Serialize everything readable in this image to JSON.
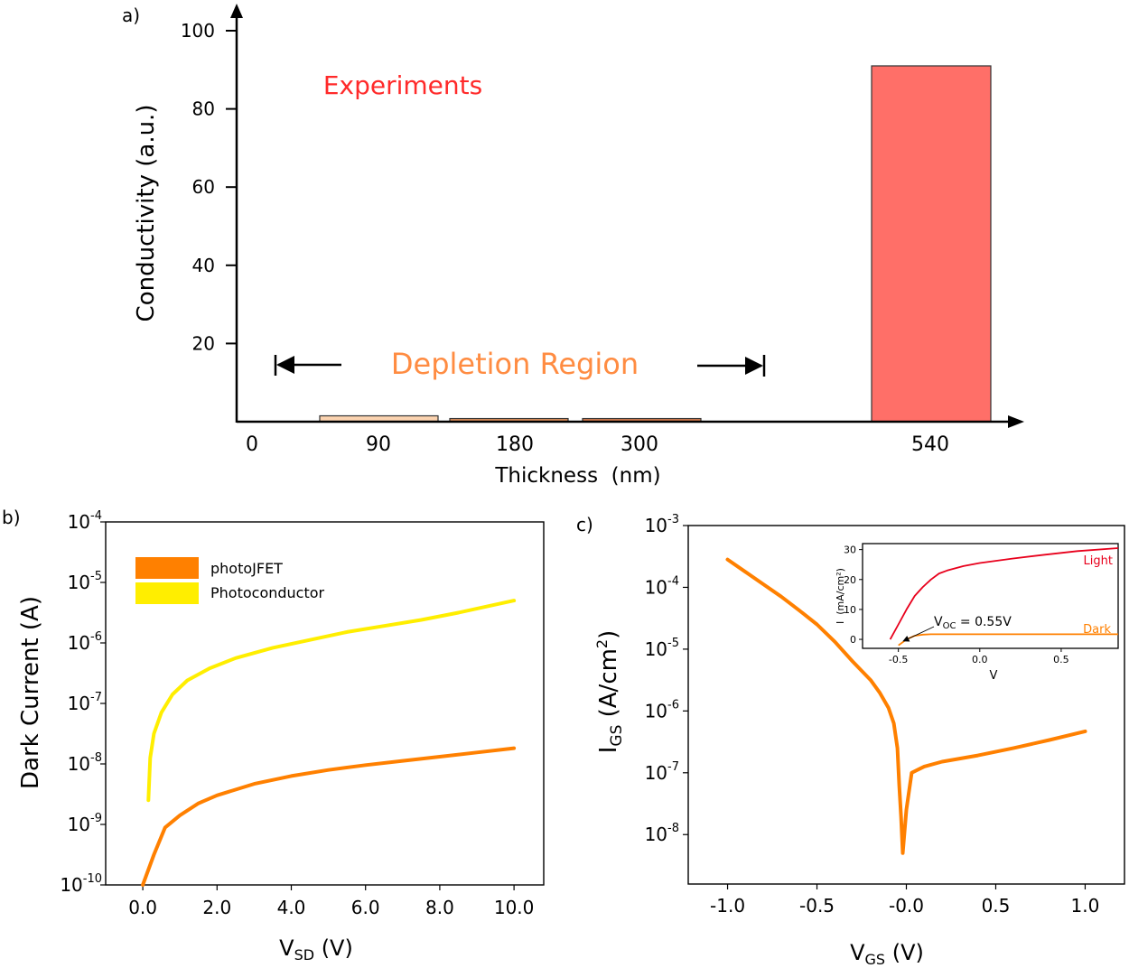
{
  "chart_data": [
    {
      "panel": "a)",
      "type": "bar",
      "title": "",
      "xlabel": "Thickness  (nm)",
      "ylabel": "Conductivity (a.u.)",
      "ylim": [
        0,
        100
      ],
      "yticks": [
        "20",
        "40",
        "60",
        "80",
        "100"
      ],
      "categories": [
        "90",
        "180",
        "300",
        "540"
      ],
      "values": [
        1.5,
        0.8,
        0.8,
        91
      ],
      "bar_colors": [
        "#fbd3b0",
        "#e8965f",
        "#dd8050",
        "#ff6f68"
      ],
      "xticks": [
        "0",
        "90",
        "180",
        "300",
        "540"
      ],
      "annotations": {
        "experiments": "Experiments",
        "experiments_color": "#ff2a2a",
        "depletion": "Depletion Region",
        "depletion_color": "#ff8c42"
      }
    },
    {
      "panel": "b)",
      "type": "line",
      "title": "",
      "xlabel_main": "V",
      "xlabel_sub": "SD",
      "xlabel_unit": " (V)",
      "ylabel": "Dark Current (A)",
      "x_ticks": [
        "0.0",
        "2.0",
        "4.0",
        "6.0",
        "8.0",
        "10.0"
      ],
      "xlim": [
        -1,
        10.8
      ],
      "y_scale": "log",
      "y_ticks_exp": [
        "-10",
        "-9",
        "-8",
        "-7",
        "-6",
        "-5",
        "-4"
      ],
      "ylim_exp": [
        -10,
        -4
      ],
      "legend": "top-left",
      "series": [
        {
          "name": "photoJFET",
          "color": "#ff8000",
          "x": [
            0,
            0.3,
            0.6,
            1.0,
            1.5,
            2.0,
            3.0,
            4.0,
            5.0,
            6.0,
            7.0,
            8.0,
            9.0,
            10.0
          ],
          "y_exp": [
            -10,
            -9.5,
            -9.05,
            -8.85,
            -8.65,
            -8.52,
            -8.33,
            -8.2,
            -8.1,
            -8.02,
            -7.95,
            -7.88,
            -7.81,
            -7.74
          ]
        },
        {
          "name": "Photoconductor",
          "color": "#ffee00",
          "x": [
            0.15,
            0.2,
            0.3,
            0.5,
            0.8,
            1.2,
            1.8,
            2.5,
            3.5,
            4.5,
            5.5,
            6.5,
            7.5,
            8.5,
            10.0
          ],
          "y_exp": [
            -8.6,
            -7.9,
            -7.5,
            -7.15,
            -6.85,
            -6.62,
            -6.42,
            -6.25,
            -6.08,
            -5.95,
            -5.82,
            -5.72,
            -5.62,
            -5.5,
            -5.3
          ]
        }
      ]
    },
    {
      "panel": "c)",
      "type": "line",
      "title": "",
      "xlabel_main": "V",
      "xlabel_sub": "GS",
      "xlabel_unit": " (V)",
      "ylabel_main": "I",
      "ylabel_sub": "GS",
      "ylabel_unit": " (A/cm",
      "ylabel_sup": "2",
      "ylabel_close": ")",
      "x_ticks": [
        "-1.0",
        "-0.5",
        "-0.0",
        "0.5",
        "1.0"
      ],
      "xlim": [
        -1.22,
        1.22
      ],
      "y_scale": "log",
      "y_ticks_exp": [
        "-8",
        "-7",
        "-6",
        "-5",
        "-4",
        "-3"
      ],
      "ylim_exp": [
        -8.8,
        -3
      ],
      "series": [
        {
          "name": "",
          "color": "#ff8000",
          "x": [
            -1.0,
            -0.9,
            -0.8,
            -0.7,
            -0.6,
            -0.5,
            -0.4,
            -0.3,
            -0.2,
            -0.15,
            -0.1,
            -0.07,
            -0.05,
            -0.04,
            -0.03,
            -0.02,
            0.0,
            0.03,
            0.1,
            0.2,
            0.4,
            0.6,
            0.8,
            1.0
          ],
          "y_exp": [
            -3.55,
            -3.75,
            -3.95,
            -4.15,
            -4.37,
            -4.6,
            -4.88,
            -5.2,
            -5.5,
            -5.7,
            -5.95,
            -6.2,
            -6.6,
            -7.2,
            -7.7,
            -8.3,
            -7.6,
            -7.0,
            -6.9,
            -6.82,
            -6.72,
            -6.6,
            -6.47,
            -6.33
          ]
        }
      ],
      "inset": {
        "xlabel": "V",
        "ylabel": "I  (mA/cm²)",
        "x_ticks": [
          "-0.5",
          "0.0",
          "0.5"
        ],
        "xlim": [
          -0.72,
          0.85
        ],
        "y_ticks": [
          "0",
          "10",
          "20",
          "30"
        ],
        "ylim": [
          -3,
          32
        ],
        "series": [
          {
            "name": "Light",
            "color": "#e8001c",
            "x": [
              -0.55,
              -0.5,
              -0.45,
              -0.4,
              -0.35,
              -0.3,
              -0.25,
              -0.2,
              -0.1,
              0.0,
              0.2,
              0.4,
              0.6,
              0.85
            ],
            "y": [
              0,
              5,
              10,
              14.5,
              17.5,
              20,
              22,
              23,
              24.5,
              25.5,
              27,
              28.3,
              29.5,
              30.5
            ]
          },
          {
            "name": "Dark",
            "color": "#ff8000",
            "x": [
              -0.5,
              -0.45,
              -0.4,
              -0.35,
              -0.3,
              0.0,
              0.85
            ],
            "y": [
              -2,
              0,
              1.2,
              1.6,
              1.7,
              1.7,
              1.7
            ]
          }
        ],
        "annotation_main": "V",
        "annotation_sub": "OC",
        "annotation_rest": " = 0.55V"
      }
    }
  ]
}
